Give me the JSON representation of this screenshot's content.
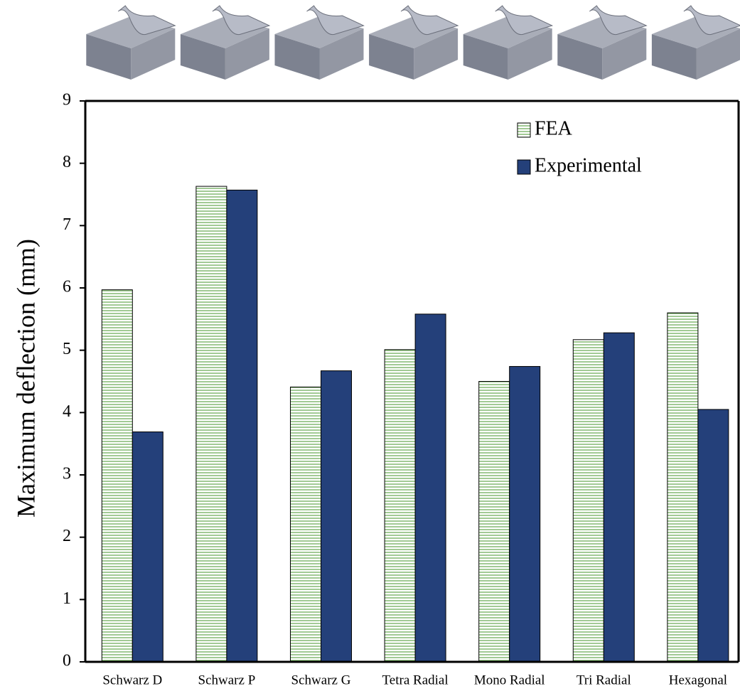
{
  "chart_data": {
    "type": "bar",
    "y_label": "Maximum deflection (mm)",
    "categories": [
      "Schwarz D",
      "Schwarz P",
      "Schwarz G",
      "Tetra Radial",
      "Mono Radial",
      "Tri Radial",
      "Hexagonal"
    ],
    "series": [
      {
        "name": "FEA",
        "color": "#6fae5c",
        "hatch": "horizontal",
        "values": [
          5.97,
          7.63,
          4.41,
          5.01,
          4.5,
          5.17,
          5.6
        ]
      },
      {
        "name": "Experimental",
        "color": "#24407a",
        "values": [
          3.69,
          7.57,
          4.67,
          5.58,
          4.74,
          5.28,
          4.05
        ]
      }
    ],
    "ylim": [
      0,
      9
    ],
    "yticks": [
      0,
      1,
      2,
      3,
      4,
      5,
      6,
      7,
      8,
      9
    ],
    "grid": false,
    "legend": "upper right"
  }
}
